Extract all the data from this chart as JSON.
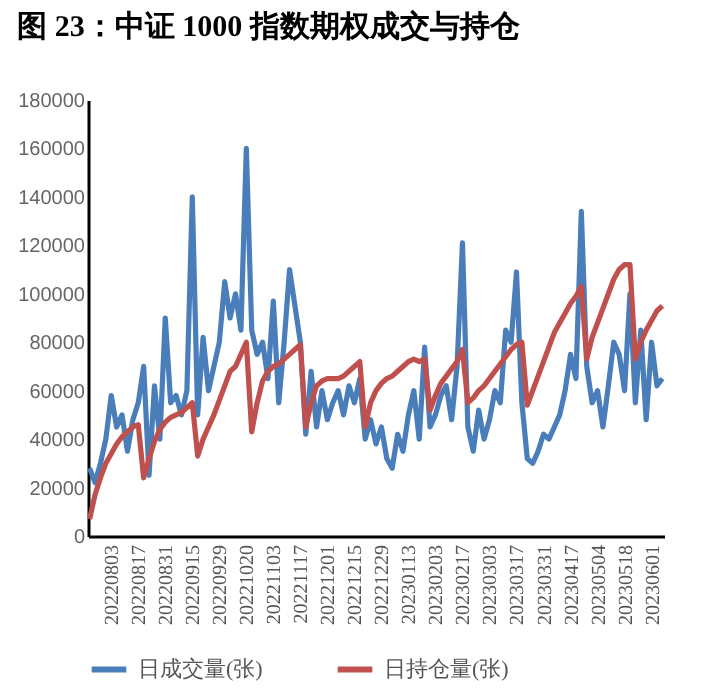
{
  "chart_data": {
    "type": "line",
    "title": "图 23：中证 1000 指数期权成交与持仓",
    "categories": [
      null,
      null,
      null,
      null,
      "20220803",
      null,
      null,
      null,
      null,
      "20220817",
      null,
      null,
      null,
      null,
      "20220831",
      null,
      null,
      null,
      null,
      "20220915",
      null,
      null,
      null,
      null,
      "20220929",
      null,
      null,
      null,
      null,
      "20221020",
      null,
      null,
      null,
      null,
      "20221103",
      null,
      null,
      null,
      null,
      "20221117",
      null,
      null,
      null,
      null,
      "20221201",
      null,
      null,
      null,
      null,
      "20221215",
      null,
      null,
      null,
      null,
      "20221229",
      null,
      null,
      null,
      null,
      "20230113",
      null,
      null,
      null,
      null,
      "20230203",
      null,
      null,
      null,
      null,
      "20230217",
      null,
      null,
      null,
      null,
      "20230303",
      null,
      null,
      null,
      null,
      "20230317",
      null,
      null,
      null,
      null,
      "20230331",
      null,
      null,
      null,
      null,
      "20230417",
      null,
      null,
      null,
      null,
      "20230504",
      null,
      null,
      null,
      null,
      "20230518",
      null,
      null,
      null,
      null,
      "20230601",
      null,
      null
    ],
    "series": [
      {
        "name": "日成交量(张)",
        "color": "#4a7ebb",
        "values": [
          28000,
          22000,
          30000,
          40000,
          58000,
          45000,
          50000,
          35000,
          48000,
          55000,
          70000,
          25000,
          62000,
          40000,
          90000,
          55000,
          58000,
          50000,
          60000,
          140000,
          50000,
          82000,
          60000,
          70000,
          80000,
          105000,
          90000,
          100000,
          85000,
          160000,
          85000,
          75000,
          80000,
          65000,
          97000,
          55000,
          80000,
          110000,
          95000,
          80000,
          42000,
          68000,
          45000,
          60000,
          48000,
          55000,
          60000,
          50000,
          62000,
          55000,
          65000,
          40000,
          48000,
          38000,
          45000,
          32000,
          28000,
          42000,
          35000,
          50000,
          60000,
          40000,
          78000,
          45000,
          50000,
          58000,
          62000,
          48000,
          70000,
          121000,
          45000,
          35000,
          52000,
          40000,
          48000,
          60000,
          55000,
          85000,
          80000,
          109000,
          55000,
          32000,
          30000,
          35000,
          42000,
          40000,
          45000,
          50000,
          60000,
          75000,
          65000,
          134000,
          70000,
          55000,
          60000,
          45000,
          62000,
          80000,
          75000,
          60000,
          100000,
          55000,
          85000,
          48000,
          80000,
          62000,
          65000
        ]
      },
      {
        "name": "日持仓量(张)",
        "color": "#c0504d",
        "values": [
          7000,
          17000,
          24000,
          30000,
          34000,
          38000,
          41000,
          43000,
          45000,
          46000,
          24000,
          32000,
          39000,
          44000,
          47000,
          49000,
          50000,
          51000,
          53000,
          55000,
          33000,
          40000,
          45000,
          50000,
          56000,
          62000,
          68000,
          70000,
          75000,
          80000,
          43000,
          55000,
          64000,
          68000,
          70000,
          71000,
          73000,
          75000,
          77000,
          79000,
          45000,
          55000,
          62000,
          64000,
          65000,
          65000,
          65000,
          66000,
          68000,
          70000,
          72000,
          45000,
          55000,
          60000,
          63000,
          65000,
          66000,
          68000,
          70000,
          72000,
          73000,
          72000,
          73000,
          52000,
          58000,
          63000,
          66000,
          69000,
          72000,
          77000,
          55000,
          57000,
          60000,
          62000,
          65000,
          68000,
          71000,
          74000,
          77000,
          79000,
          80000,
          54000,
          60000,
          66000,
          72000,
          78000,
          84000,
          88000,
          92000,
          96000,
          99000,
          103000,
          73000,
          82000,
          88000,
          94000,
          100000,
          106000,
          110000,
          112000,
          112000,
          73000,
          80000,
          85000,
          89000,
          93000,
          95000
        ]
      }
    ],
    "ylim": [
      0,
      180000
    ],
    "yticks": [
      0,
      20000,
      40000,
      60000,
      80000,
      100000,
      120000,
      140000,
      160000,
      180000
    ],
    "grid": false,
    "legend": "bottom",
    "line_style": "solid",
    "marker": "none"
  }
}
